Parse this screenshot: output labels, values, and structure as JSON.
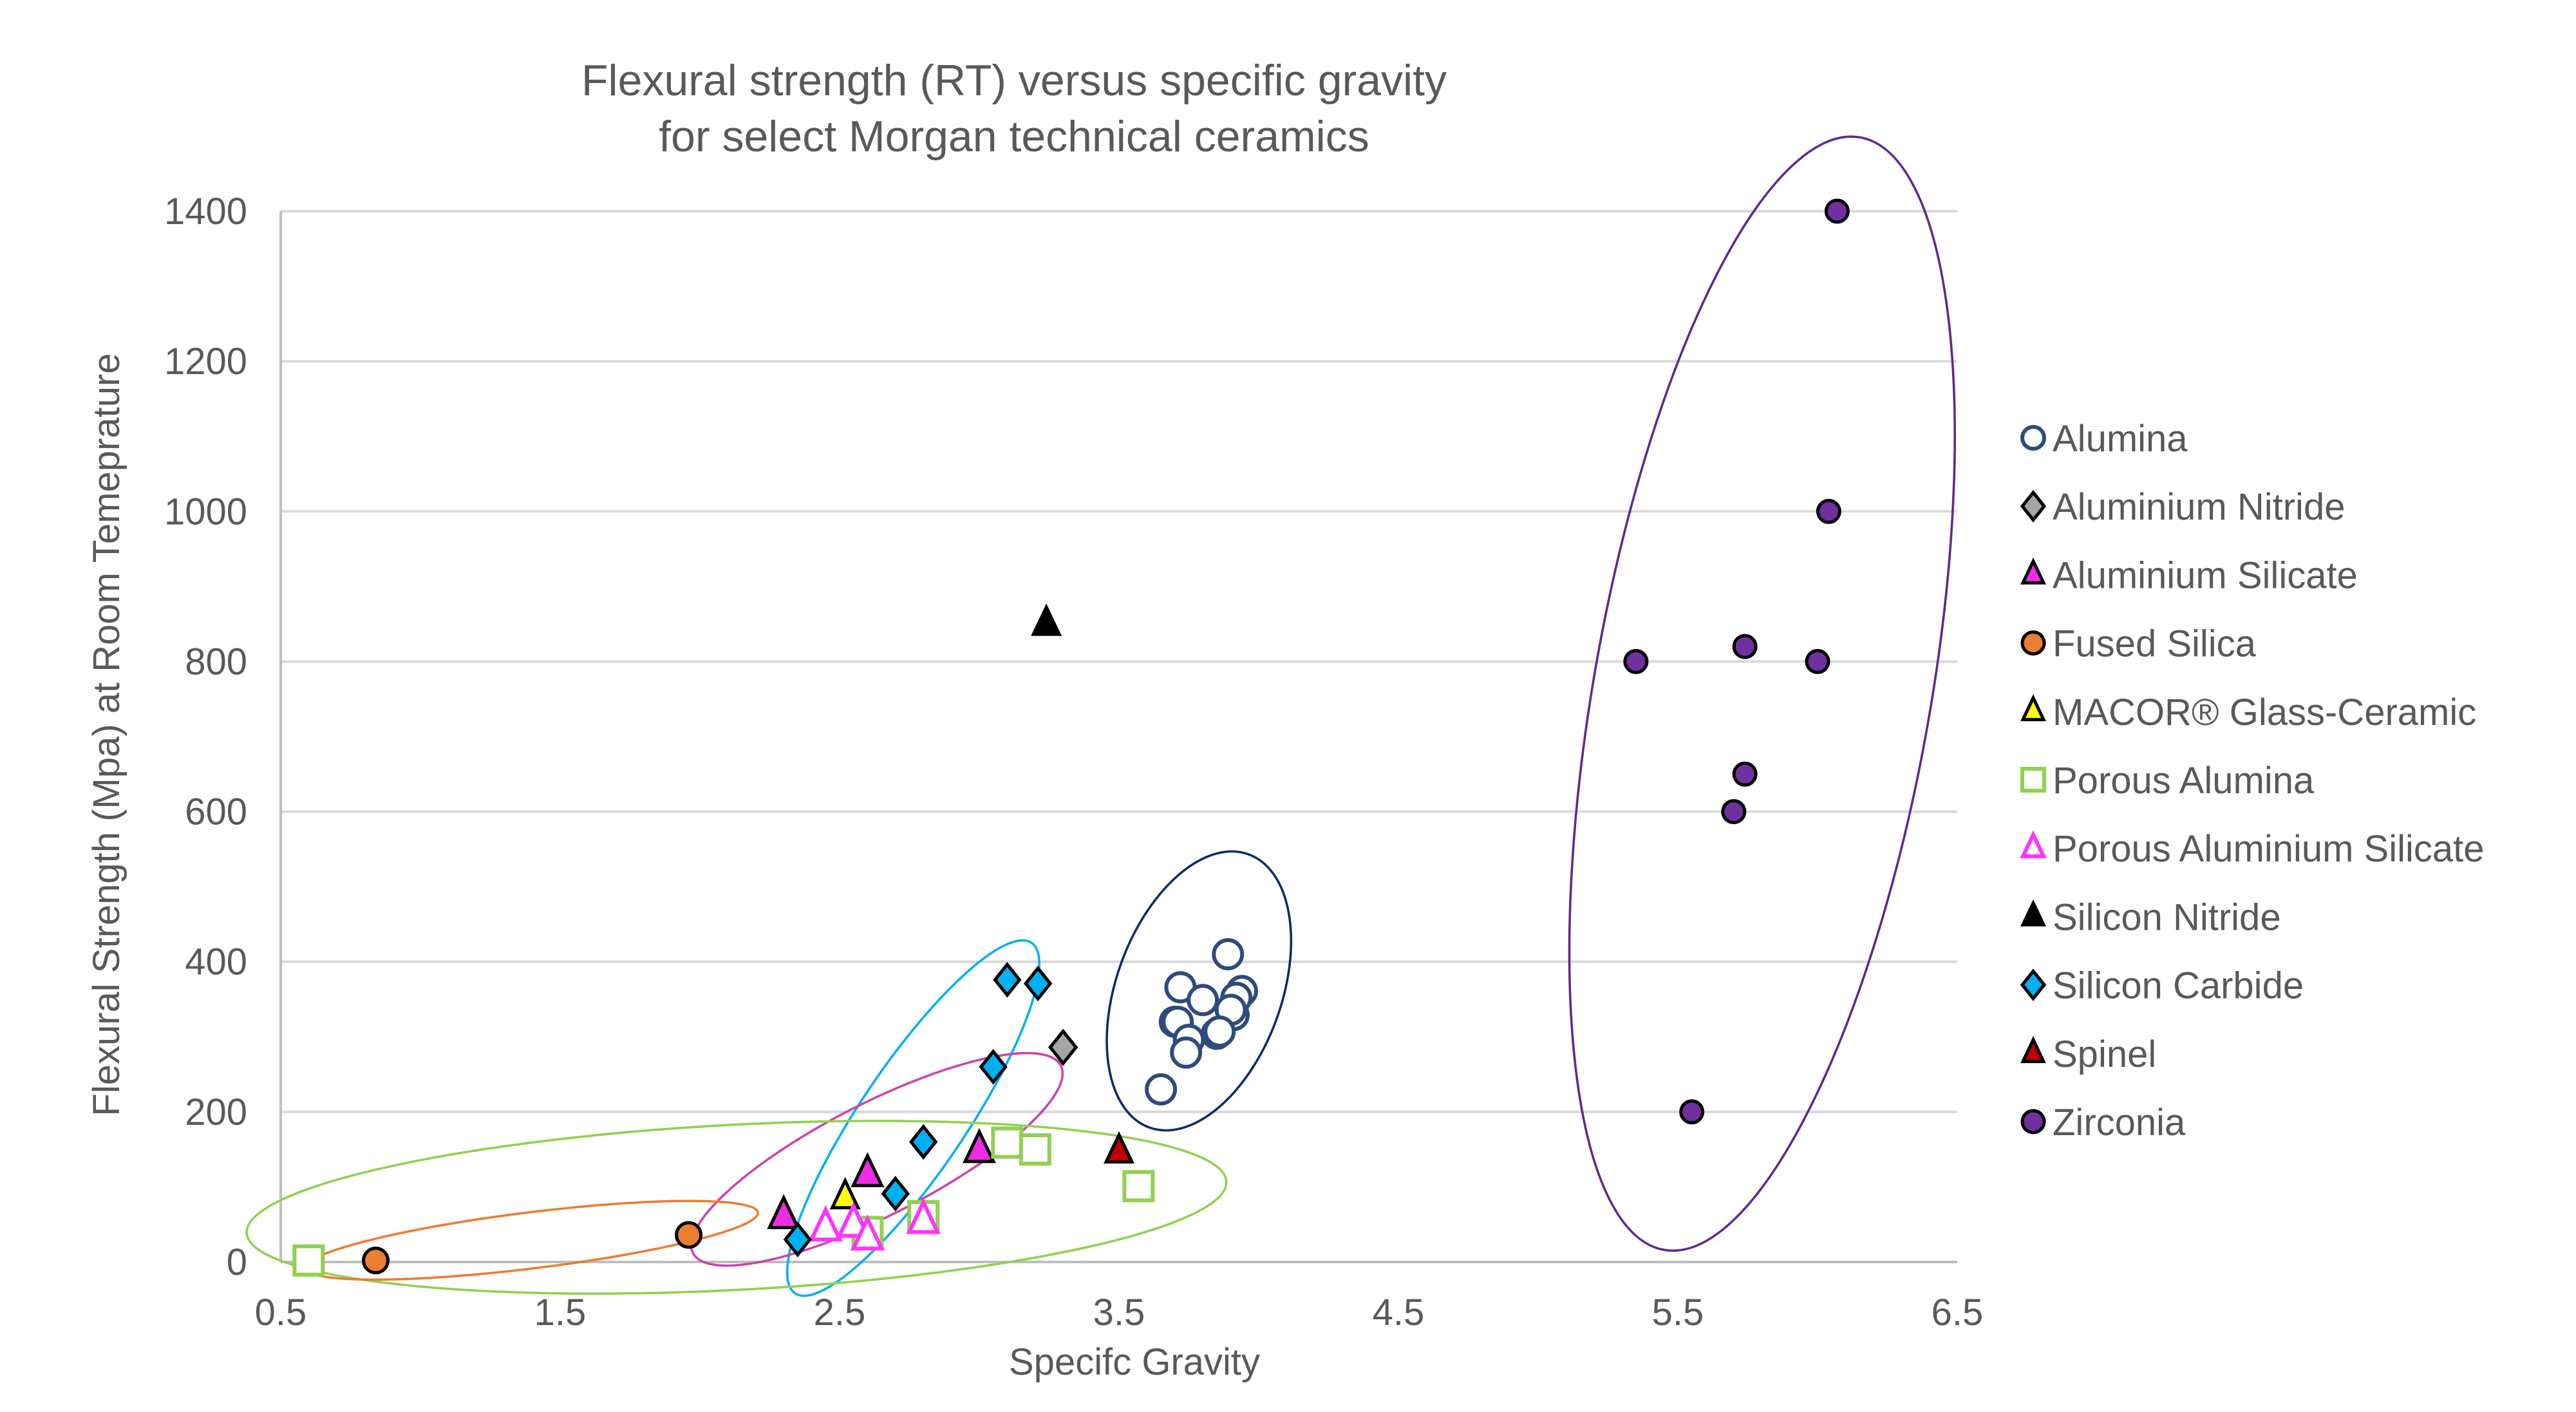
{
  "chart_data": {
    "type": "scatter",
    "title": [
      "Flexural strength (RT) versus specific gravity",
      "for select Morgan technical ceramics"
    ],
    "xlabel": "Specifc Gravity",
    "ylabel": "Flexural Strength (Mpa) at Room Temeprature",
    "xlim": [
      0.5,
      6.5
    ],
    "ylim": [
      0,
      1400
    ],
    "xticks": [
      "0.5",
      "1.5",
      "2.5",
      "3.5",
      "4.5",
      "5.5",
      "6.5"
    ],
    "yticks": [
      "0",
      "200",
      "400",
      "600",
      "800",
      "1000",
      "1200",
      "1400"
    ],
    "grid": "horizontal",
    "legend_position": "right",
    "series": [
      {
        "name": "Alumina",
        "marker": "circle-open",
        "color": "#2F4B7C",
        "points": [
          [
            3.89,
            410
          ],
          [
            3.72,
            366
          ],
          [
            3.8,
            349
          ],
          [
            3.94,
            361
          ],
          [
            3.92,
            352
          ],
          [
            3.7,
            320
          ],
          [
            3.71,
            320
          ],
          [
            3.91,
            329
          ],
          [
            3.9,
            336
          ],
          [
            3.85,
            304
          ],
          [
            3.86,
            307
          ],
          [
            3.75,
            296
          ],
          [
            3.74,
            279
          ],
          [
            3.65,
            230
          ]
        ]
      },
      {
        "name": "Aluminium Nitride",
        "marker": "diamond",
        "color": "#A5A5A5",
        "points": [
          [
            3.3,
            286
          ]
        ]
      },
      {
        "name": "Aluminium Silicate",
        "marker": "triangle",
        "color": "#EE2CE6",
        "points": [
          [
            2.3,
            61
          ],
          [
            2.6,
            117
          ],
          [
            3.0,
            149
          ]
        ]
      },
      {
        "name": "Fused Silica",
        "marker": "circle",
        "color": "#ED7D31",
        "points": [
          [
            0.84,
            2
          ],
          [
            1.96,
            36
          ]
        ]
      },
      {
        "name": "MACOR® Glass-Ceramic",
        "marker": "triangle",
        "color": "#FFFF00",
        "points": [
          [
            2.52,
            86
          ]
        ]
      },
      {
        "name": "Porous Alumina",
        "marker": "square-open",
        "color": "#92D050",
        "points": [
          [
            0.6,
            2
          ],
          [
            2.6,
            40
          ],
          [
            2.8,
            61
          ],
          [
            3.1,
            159
          ],
          [
            3.2,
            150
          ],
          [
            3.57,
            101
          ]
        ]
      },
      {
        "name": "Porous Aluminium Silicate",
        "marker": "triangle-open",
        "color": "#FF33FF",
        "points": [
          [
            2.45,
            45
          ],
          [
            2.55,
            50
          ],
          [
            2.6,
            33
          ],
          [
            2.8,
            55
          ]
        ]
      },
      {
        "name": "Silicon Nitride",
        "marker": "triangle",
        "color": "#000000",
        "points": [
          [
            3.24,
            850
          ]
        ]
      },
      {
        "name": "Silicon Carbide",
        "marker": "diamond",
        "color": "#00B0F0",
        "points": [
          [
            3.1,
            376
          ],
          [
            3.21,
            371
          ],
          [
            3.05,
            260
          ],
          [
            2.8,
            160
          ],
          [
            2.7,
            91
          ],
          [
            2.35,
            30
          ]
        ]
      },
      {
        "name": "Spinel",
        "marker": "triangle",
        "color": "#C00000",
        "points": [
          [
            3.5,
            147
          ]
        ]
      },
      {
        "name": "Zirconia",
        "marker": "circle",
        "color": "#7030A0",
        "points": [
          [
            6.07,
            1400
          ],
          [
            6.04,
            1000
          ],
          [
            5.35,
            800
          ],
          [
            5.74,
            820
          ],
          [
            6.0,
            800
          ],
          [
            5.74,
            650
          ],
          [
            5.7,
            600
          ],
          [
            5.55,
            200
          ]
        ]
      }
    ],
    "grouping_ellipse_colors": {
      "Zirconia": "#5B2C8F",
      "Alumina": "#0D2C6B",
      "Silicon Carbide": "#00B0F0",
      "Aluminium Silicate": "#CC44AA",
      "Porous Alumina": "#92D050",
      "Fused Silica": "#ED7D31"
    }
  }
}
